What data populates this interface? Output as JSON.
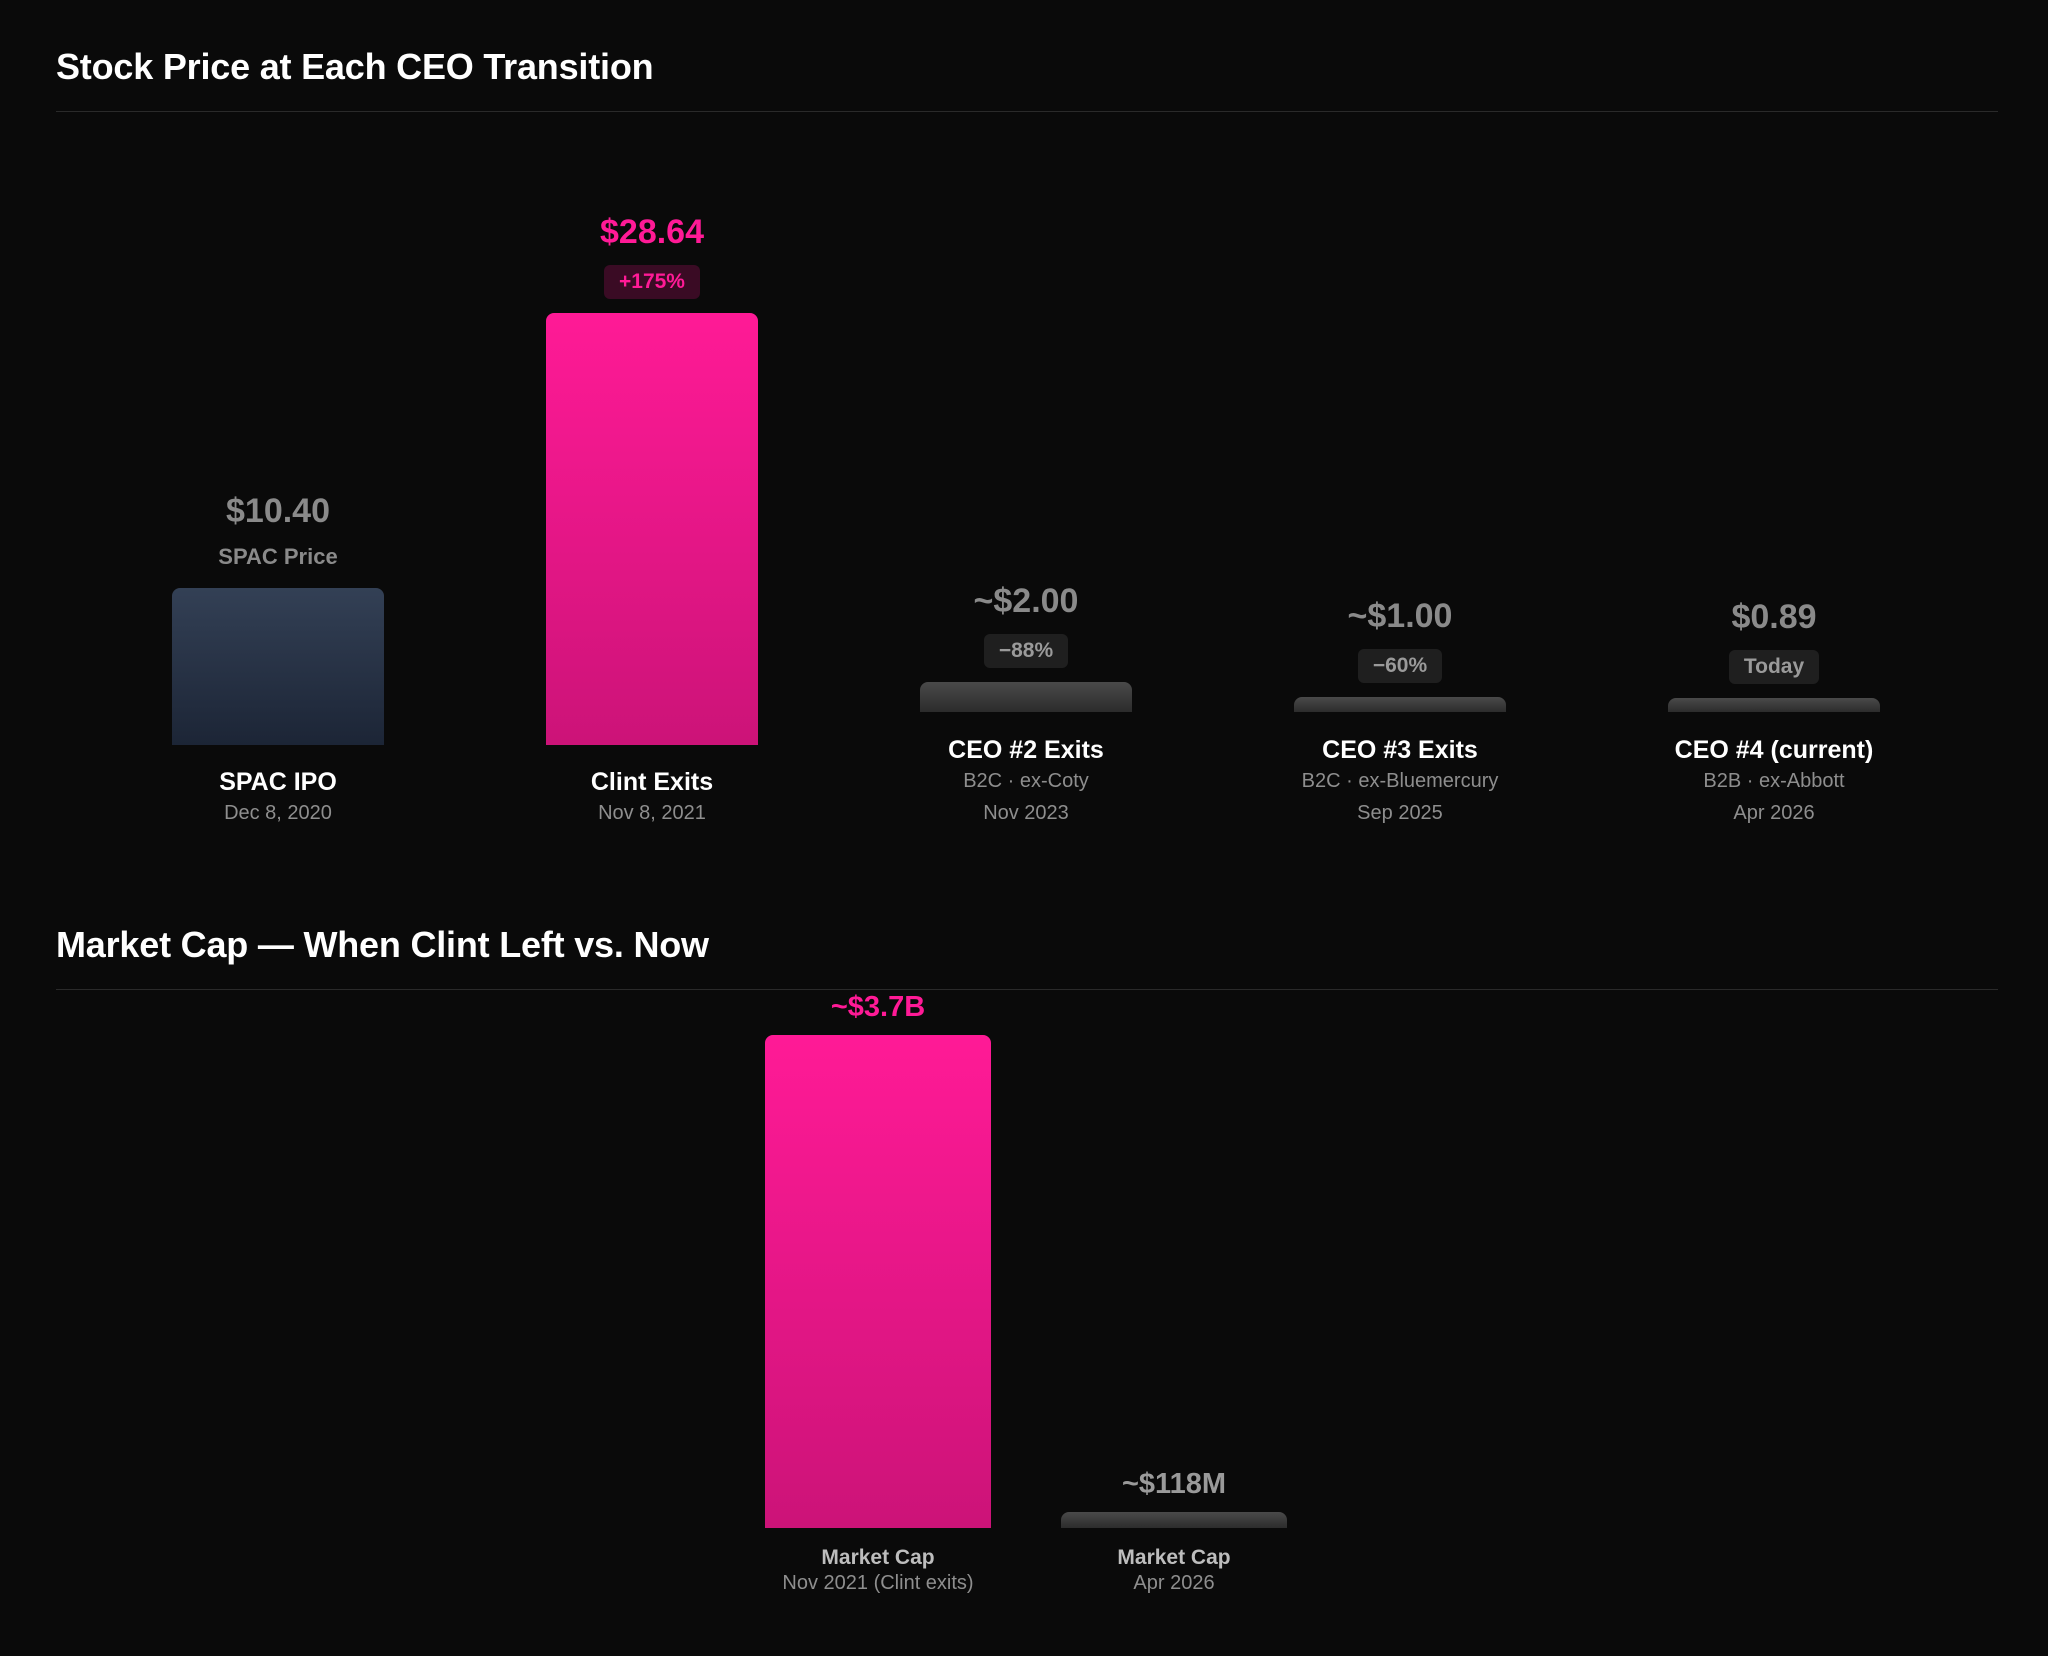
{
  "colors": {
    "background": "#0a0a0a",
    "accent": "#ff1a96",
    "accent_dark": "#cc1378",
    "baseline_bar_top": "#334055",
    "baseline_bar_bottom": "#1c2536",
    "decline_bar": "#4a4a4a",
    "muted_text": "#8e8e8e"
  },
  "sections": {
    "stock": {
      "title": "Stock Price at Each CEO Transition"
    },
    "market_cap": {
      "title": "Market Cap — When Clint Left vs. Now"
    }
  },
  "chart_data": [
    {
      "type": "bar",
      "title": "Stock Price at Each CEO Transition",
      "categories": [
        "SPAC IPO",
        "Clint Exits",
        "CEO #2 Exits",
        "CEO #3 Exits",
        "CEO #4 (current)"
      ],
      "values": [
        10.4,
        28.64,
        2.0,
        1.0,
        0.89
      ],
      "ylim": [
        0,
        28.64
      ],
      "grid": false,
      "points": [
        {
          "name": "SPAC IPO",
          "value_label": "$10.40",
          "badge": "SPAC Price",
          "badge_style": "plain",
          "detail": "",
          "date": "Dec 8, 2020",
          "style": "baseline"
        },
        {
          "name": "Clint Exits",
          "value_label": "$28.64",
          "badge": "+175%",
          "badge_style": "accent",
          "detail": "",
          "date": "Nov 8, 2021",
          "style": "accent"
        },
        {
          "name": "CEO #2 Exits",
          "value_label": "~$2.00",
          "badge": "−88%",
          "badge_style": "muted",
          "detail": "B2C · ex-Coty",
          "date": "Nov 2023",
          "style": "decline"
        },
        {
          "name": "CEO #3 Exits",
          "value_label": "~$1.00",
          "badge": "−60%",
          "badge_style": "muted",
          "detail": "B2C · ex-Bluemercury",
          "date": "Sep 2025",
          "style": "decline"
        },
        {
          "name": "CEO #4 (current)",
          "value_label": "$0.89",
          "badge": "Today",
          "badge_style": "muted",
          "detail": "B2B · ex-Abbott",
          "date": "Apr 2026",
          "style": "decline"
        }
      ]
    },
    {
      "type": "bar",
      "title": "Market Cap — When Clint Left vs. Now",
      "categories": [
        "Market Cap",
        "Market Cap"
      ],
      "values": [
        3700,
        118
      ],
      "unit": "$M",
      "ylim": [
        0,
        3700
      ],
      "grid": false,
      "points": [
        {
          "name": "Market Cap",
          "value_label": "~$3.7B",
          "date": "Nov 2021 (Clint exits)",
          "style": "accent"
        },
        {
          "name": "Market Cap",
          "value_label": "~$118M",
          "date": "Apr 2026",
          "style": "decline"
        }
      ]
    }
  ]
}
